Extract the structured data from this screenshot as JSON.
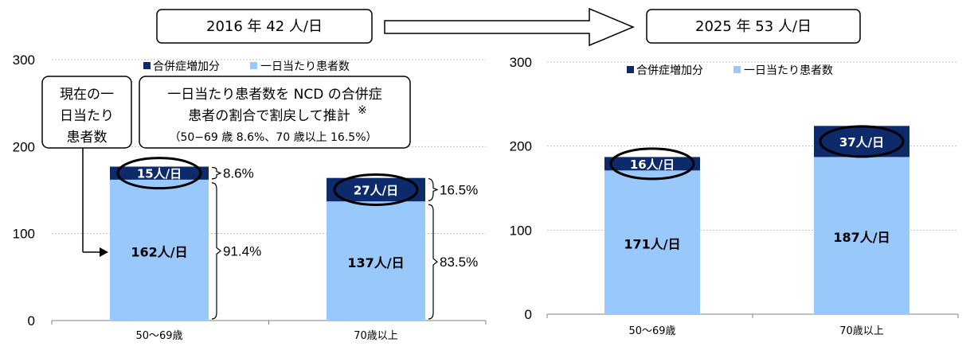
{
  "header": {
    "left": "2016 年 42 人/日",
    "right": "2025 年 53 人/日"
  },
  "colors": {
    "base": "#99c9fb",
    "increase": "#0d2a6b",
    "grid": "#bfbfbf",
    "axis": "#808080"
  },
  "legend": {
    "increase": "合併症増加分",
    "base": "一日当たり患者数"
  },
  "chart_data": [
    {
      "type": "bar",
      "stacked": true,
      "categories": [
        "50〜69歳",
        "70歳以上"
      ],
      "ylim": [
        0,
        300
      ],
      "yticks": [
        0,
        100,
        200,
        300
      ],
      "grid": true,
      "legend_position": "top",
      "series": [
        {
          "name": "一日当たり患者数",
          "values": [
            162,
            137
          ],
          "labels": [
            "162人/日",
            "137人/日"
          ]
        },
        {
          "name": "合併症増加分",
          "values": [
            15,
            27
          ],
          "labels": [
            "15人/日",
            "27人/日"
          ]
        }
      ],
      "annotations": {
        "increase_pct": [
          "8.6%",
          "16.5%"
        ],
        "base_pct": [
          "91.4%",
          "83.5%"
        ],
        "callout_current": [
          "現在の一",
          "日当たり",
          "患者数"
        ],
        "callout_estimate": [
          "一日当たり患者数を NCD の合併症",
          "患者の割合で割戻して推計",
          "※",
          "（50−69 歳 8.6%、70 歳以上 16.5%）"
        ]
      }
    },
    {
      "type": "bar",
      "stacked": true,
      "categories": [
        "50〜69歳",
        "70歳以上"
      ],
      "ylim": [
        0,
        300
      ],
      "yticks": [
        0,
        100,
        200,
        300
      ],
      "grid": true,
      "legend_position": "top",
      "series": [
        {
          "name": "一日当たり患者数",
          "values": [
            171,
            187
          ],
          "labels": [
            "171人/日",
            "187人/日"
          ]
        },
        {
          "name": "合併症増加分",
          "values": [
            16,
            37
          ],
          "labels": [
            "16人/日",
            "37人/日"
          ]
        }
      ]
    }
  ]
}
